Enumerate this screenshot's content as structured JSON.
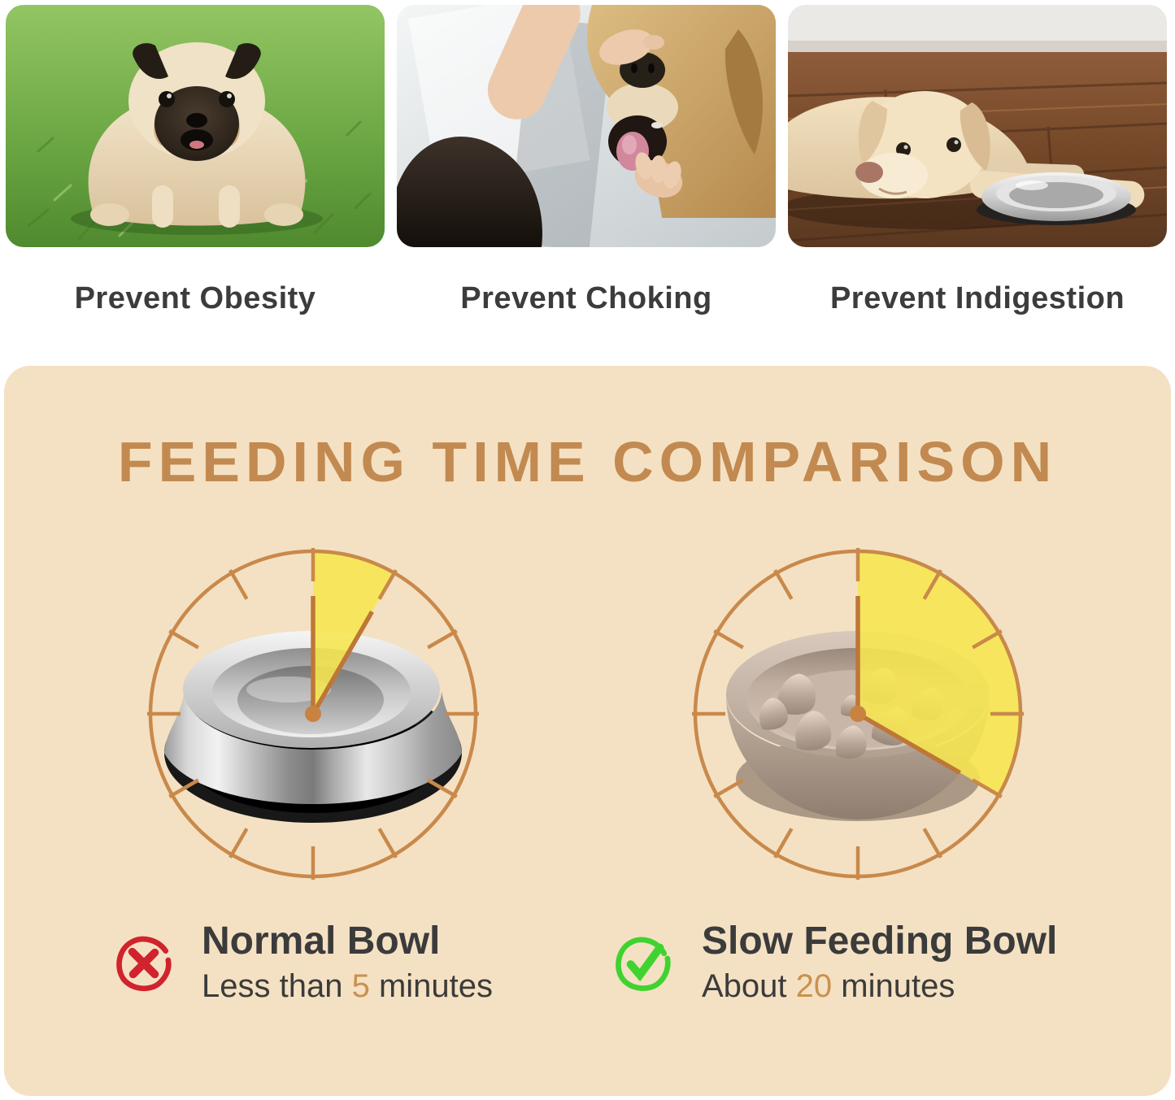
{
  "benefits": {
    "items": [
      {
        "caption": "Prevent Obesity",
        "photo_icon": "fat-pug-on-grass-photo"
      },
      {
        "caption": "Prevent Choking",
        "photo_icon": "checking-dog-mouth-photo"
      },
      {
        "caption": "Prevent Indigestion",
        "photo_icon": "dog-lying-by-bowl-photo"
      }
    ]
  },
  "comparison": {
    "title": "FEEDING TIME COMPARISON",
    "results": [
      {
        "verdict_icon": "cross-icon",
        "name": "Normal Bowl",
        "time_prefix": "Less than ",
        "time_value": "5",
        "time_suffix": " minutes",
        "wedge_deg": 30,
        "bowl_icon": "stainless-steel-bowl"
      },
      {
        "verdict_icon": "check-icon",
        "name": "Slow Feeding Bowl",
        "time_prefix": "About ",
        "time_value": "20",
        "time_suffix": " minutes",
        "wedge_deg": 120,
        "bowl_icon": "ceramic-slow-feeder-bowl"
      }
    ]
  },
  "colors": {
    "panel_bg": "#f4e1c3",
    "heading": "#c28a50",
    "clock_stroke": "#c9894b",
    "hand": "#bd7737",
    "center_dot": "#c9823f",
    "wedge": "#f7e64e",
    "dark_text": "#3b3b3b",
    "accent_number": "#c9914f",
    "cross_red": "#d1232d",
    "check_green": "#3fd32f"
  }
}
